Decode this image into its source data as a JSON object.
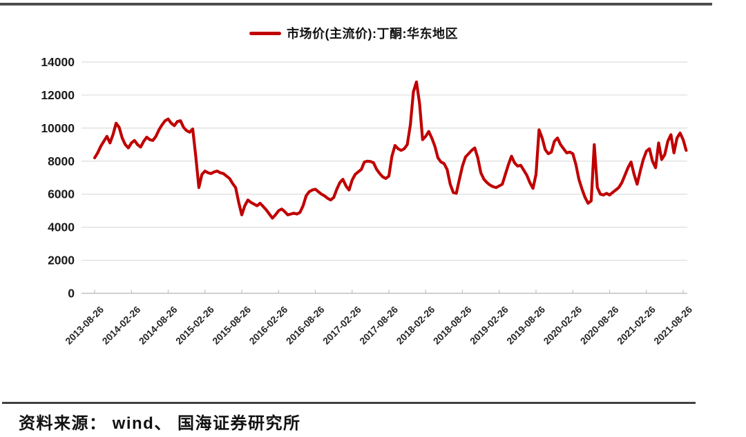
{
  "legend": {
    "label": "市场价(主流价):丁酮:华东地区",
    "line_color": "#c00000"
  },
  "footer": {
    "source_text": "资料来源： wind、 国海证券研究所"
  },
  "chart_data": {
    "type": "line",
    "title": "",
    "xlabel": "",
    "ylabel": "",
    "grid": true,
    "legend_position": "top",
    "ylim": [
      0,
      14000
    ],
    "y_ticks": [
      0,
      2000,
      4000,
      6000,
      8000,
      10000,
      12000,
      14000
    ],
    "x_tick_labels": [
      "2013-08-26",
      "2014-02-26",
      "2014-08-26",
      "2015-02-26",
      "2015-08-26",
      "2016-02-26",
      "2016-08-26",
      "2017-02-26",
      "2017-08-26",
      "2018-02-26",
      "2018-08-26",
      "2019-02-26",
      "2019-08-26",
      "2020-02-26",
      "2020-08-26",
      "2021-02-26",
      "2021-08-26"
    ],
    "months_per_tick": 6,
    "series": [
      {
        "name": "市场价(主流价):丁酮:华东地区",
        "color": "#c00000",
        "start_date": "2013-08-26",
        "step_months": 0.5,
        "values": [
          8200,
          8500,
          8900,
          9200,
          9500,
          9100,
          9600,
          10300,
          10050,
          9400,
          9000,
          8800,
          9100,
          9250,
          9000,
          8850,
          9200,
          9450,
          9300,
          9250,
          9500,
          9900,
          10200,
          10450,
          10550,
          10300,
          10150,
          10400,
          10450,
          10050,
          9850,
          9750,
          9950,
          8300,
          6400,
          7200,
          7400,
          7300,
          7250,
          7350,
          7400,
          7300,
          7250,
          7100,
          6950,
          6650,
          6400,
          5500,
          4750,
          5300,
          5650,
          5500,
          5400,
          5300,
          5450,
          5250,
          5050,
          4800,
          4550,
          4750,
          5000,
          5100,
          4950,
          4750,
          4800,
          4850,
          4800,
          4900,
          5300,
          5900,
          6150,
          6250,
          6300,
          6150,
          6000,
          5900,
          5750,
          5650,
          5800,
          6300,
          6700,
          6900,
          6500,
          6250,
          6850,
          7200,
          7350,
          7500,
          7950,
          8000,
          7980,
          7900,
          7500,
          7250,
          7050,
          6950,
          7100,
          8300,
          8950,
          8750,
          8650,
          8750,
          9000,
          10200,
          12200,
          12800,
          11500,
          9300,
          9500,
          9800,
          9400,
          8900,
          8200,
          7950,
          7850,
          7500,
          6600,
          6100,
          6050,
          6900,
          7700,
          8250,
          8450,
          8650,
          8800,
          8200,
          7300,
          6900,
          6700,
          6550,
          6450,
          6400,
          6500,
          6600,
          7200,
          7800,
          8300,
          7900,
          7700,
          7750,
          7450,
          7150,
          6700,
          6350,
          7200,
          9900,
          9400,
          8700,
          8450,
          8550,
          9200,
          9400,
          9000,
          8750,
          8500,
          8550,
          8450,
          7800,
          6900,
          6300,
          5800,
          5450,
          5600,
          9000,
          6400,
          6000,
          5950,
          6050,
          5950,
          6100,
          6250,
          6400,
          6700,
          7150,
          7600,
          7950,
          7200,
          6600,
          7400,
          8100,
          8600,
          8750,
          8000,
          7600,
          9100,
          8100,
          8400,
          9200,
          9600,
          8500,
          9400,
          9700,
          9300,
          8650
        ]
      }
    ]
  }
}
